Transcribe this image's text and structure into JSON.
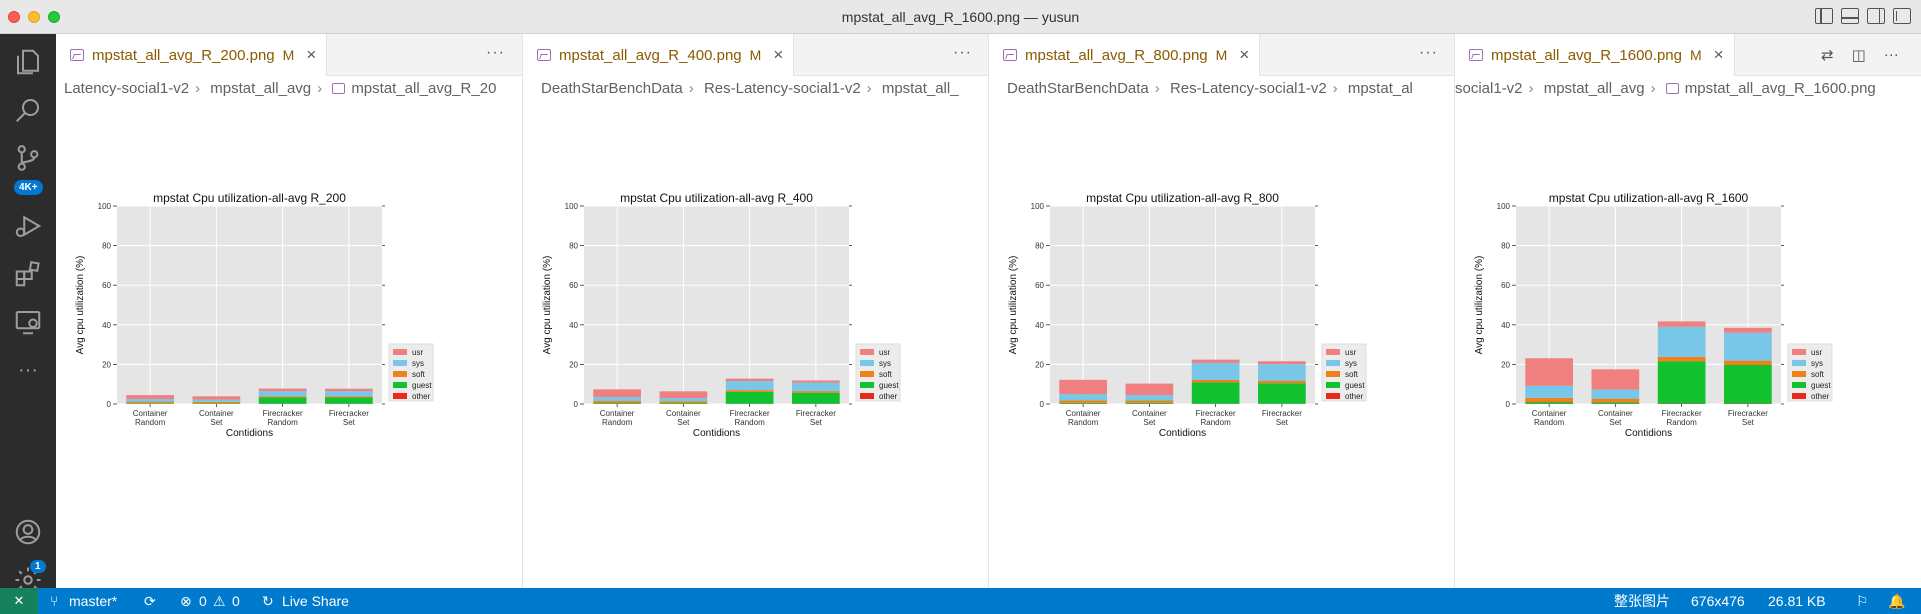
{
  "window": {
    "title": "mpstat_all_avg_R_1600.png — yusun"
  },
  "activity": {
    "scm_badge": "4K+",
    "accounts_badge": "1",
    "more": "···"
  },
  "groups": [
    {
      "tab": {
        "label": "mpstat_all_avg_R_200.png",
        "modified": "M",
        "close": "×"
      },
      "more": "···",
      "breadcrumb": [
        "Latency-social1-v2",
        "mpstat_all_avg",
        "mpstat_all_avg_R_20"
      ]
    },
    {
      "tab": {
        "label": "mpstat_all_avg_R_400.png",
        "modified": "M",
        "close": "×"
      },
      "more": "···",
      "breadcrumb": [
        "DeathStarBenchData",
        "Res-Latency-social1-v2",
        "mpstat_all_"
      ]
    },
    {
      "tab": {
        "label": "mpstat_all_avg_R_800.png",
        "modified": "M",
        "close": "×"
      },
      "more": "···",
      "breadcrumb": [
        "DeathStarBenchData",
        "Res-Latency-social1-v2",
        "mpstat_al"
      ]
    },
    {
      "tab": {
        "label": "mpstat_all_avg_R_1600.png",
        "modified": "M",
        "close": "×"
      },
      "more": "···",
      "breadcrumb": [
        "social1-v2",
        "mpstat_all_avg",
        "mpstat_all_avg_R_1600.png"
      ]
    }
  ],
  "chart_data": [
    {
      "type": "bar",
      "title": "mpstat Cpu utilization-all-avg R_200",
      "xlabel": "Contidions",
      "ylabel": "Avg cpu utilization (%)",
      "ylim": [
        0,
        100
      ],
      "yticks": [
        "0",
        "20",
        "40",
        "60",
        "80",
        "100"
      ],
      "categories": [
        [
          "Container",
          "Random"
        ],
        [
          "Container",
          "Set"
        ],
        [
          "Firecracker",
          "Random"
        ],
        [
          "Firecracker",
          "Set"
        ]
      ],
      "stacked": true,
      "grid": true,
      "legend_position": "right",
      "series": [
        {
          "name": "other",
          "color": "#e8291c",
          "values": [
            0.1,
            0.1,
            0.1,
            0.1
          ]
        },
        {
          "name": "guest",
          "color": "#12c12e",
          "values": [
            0.3,
            0.3,
            3.2,
            3.2
          ]
        },
        {
          "name": "soft",
          "color": "#f0801e",
          "values": [
            0.8,
            0.7,
            0.6,
            0.6
          ]
        },
        {
          "name": "sys",
          "color": "#78c7e8",
          "values": [
            1.3,
            1.1,
            2.6,
            2.6
          ]
        },
        {
          "name": "usr",
          "color": "#f07f80",
          "values": [
            2.0,
            1.7,
            1.3,
            1.2
          ]
        }
      ]
    },
    {
      "type": "bar",
      "title": "mpstat Cpu utilization-all-avg R_400",
      "xlabel": "Contidions",
      "ylabel": "Avg cpu utilization (%)",
      "ylim": [
        0,
        100
      ],
      "yticks": [
        "0",
        "20",
        "40",
        "60",
        "80",
        "100"
      ],
      "categories": [
        [
          "Container",
          "Random"
        ],
        [
          "Container",
          "Set"
        ],
        [
          "Firecracker",
          "Random"
        ],
        [
          "Firecracker",
          "Set"
        ]
      ],
      "stacked": true,
      "grid": true,
      "legend_position": "right",
      "series": [
        {
          "name": "other",
          "color": "#e8291c",
          "values": [
            0.1,
            0.1,
            0.1,
            0.1
          ]
        },
        {
          "name": "guest",
          "color": "#12c12e",
          "values": [
            0.4,
            0.4,
            6.0,
            5.6
          ]
        },
        {
          "name": "soft",
          "color": "#f0801e",
          "values": [
            1.0,
            0.9,
            0.9,
            0.8
          ]
        },
        {
          "name": "sys",
          "color": "#78c7e8",
          "values": [
            2.0,
            1.6,
            4.6,
            4.3
          ]
        },
        {
          "name": "usr",
          "color": "#f07f80",
          "values": [
            3.9,
            3.4,
            1.2,
            1.1
          ]
        }
      ]
    },
    {
      "type": "bar",
      "title": "mpstat Cpu utilization-all-avg R_800",
      "xlabel": "Contidions",
      "ylabel": "Avg cpu utilization (%)",
      "ylim": [
        0,
        100
      ],
      "yticks": [
        "0",
        "20",
        "40",
        "60",
        "80",
        "100"
      ],
      "categories": [
        [
          "Container",
          "Random"
        ],
        [
          "Container",
          "Set"
        ],
        [
          "Firecracker",
          "Random"
        ],
        [
          "Firecracker",
          "Set"
        ]
      ],
      "stacked": true,
      "grid": true,
      "legend_position": "right",
      "series": [
        {
          "name": "other",
          "color": "#e8291c",
          "values": [
            0.1,
            0.1,
            0.1,
            0.1
          ]
        },
        {
          "name": "guest",
          "color": "#12c12e",
          "values": [
            0.5,
            0.5,
            10.8,
            10.4
          ]
        },
        {
          "name": "soft",
          "color": "#f0801e",
          "values": [
            1.3,
            1.2,
            1.3,
            1.3
          ]
        },
        {
          "name": "sys",
          "color": "#78c7e8",
          "values": [
            3.1,
            2.7,
            8.6,
            8.3
          ]
        },
        {
          "name": "usr",
          "color": "#f07f80",
          "values": [
            7.2,
            5.8,
            1.6,
            1.5
          ]
        }
      ]
    },
    {
      "type": "bar",
      "title": "mpstat Cpu utilization-all-avg R_1600",
      "xlabel": "Contidions",
      "ylabel": "Avg cpu utilization (%)",
      "ylim": [
        0,
        100
      ],
      "yticks": [
        "0",
        "20",
        "40",
        "60",
        "80",
        "100"
      ],
      "categories": [
        [
          "Container",
          "Random"
        ],
        [
          "Container",
          "Set"
        ],
        [
          "Firecracker",
          "Random"
        ],
        [
          "Firecracker",
          "Set"
        ]
      ],
      "stacked": true,
      "grid": true,
      "legend_position": "right",
      "series": [
        {
          "name": "other",
          "color": "#e8291c",
          "values": [
            0.2,
            0.2,
            0.2,
            0.2
          ]
        },
        {
          "name": "guest",
          "color": "#12c12e",
          "values": [
            0.8,
            0.7,
            21.3,
            19.5
          ]
        },
        {
          "name": "soft",
          "color": "#f0801e",
          "values": [
            2.1,
            1.8,
            2.3,
            2.2
          ]
        },
        {
          "name": "sys",
          "color": "#78c7e8",
          "values": [
            6.1,
            4.6,
            15.2,
            14.1
          ]
        },
        {
          "name": "usr",
          "color": "#f07f80",
          "values": [
            13.9,
            10.2,
            2.7,
            2.5
          ]
        }
      ]
    }
  ],
  "legend_order": [
    "usr",
    "sys",
    "soft",
    "guest",
    "other"
  ],
  "statusbar": {
    "branch": "master*",
    "errors": "0",
    "warnings": "0",
    "live_share": "Live Share",
    "image_mode": "整张图片",
    "dimensions": "676x476",
    "file_size": "26.81 KB"
  }
}
